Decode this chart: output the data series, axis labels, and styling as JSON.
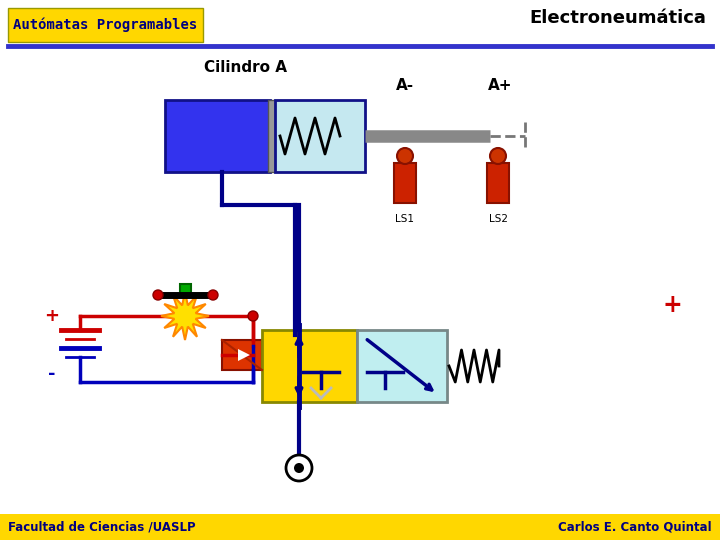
{
  "title": "Electroneumática",
  "subtitle": "Autómatas Programables",
  "subtitle_bg": "#FFD700",
  "subtitle_text_color": "#000080",
  "footer_bg": "#FFD700",
  "footer_left": "Facultad de Ciencias /UASLP",
  "footer_right": "Carlos E. Canto Quintal",
  "bg_color": "#FFFFFF",
  "cylinder_label": "Cilindro A",
  "aminus_label": "A-",
  "aplus_label": "A+",
  "ls1_label": "LS1",
  "ls2_label": "LS2",
  "plus_label": "+",
  "minus_label": "-",
  "plus2_label": "+"
}
